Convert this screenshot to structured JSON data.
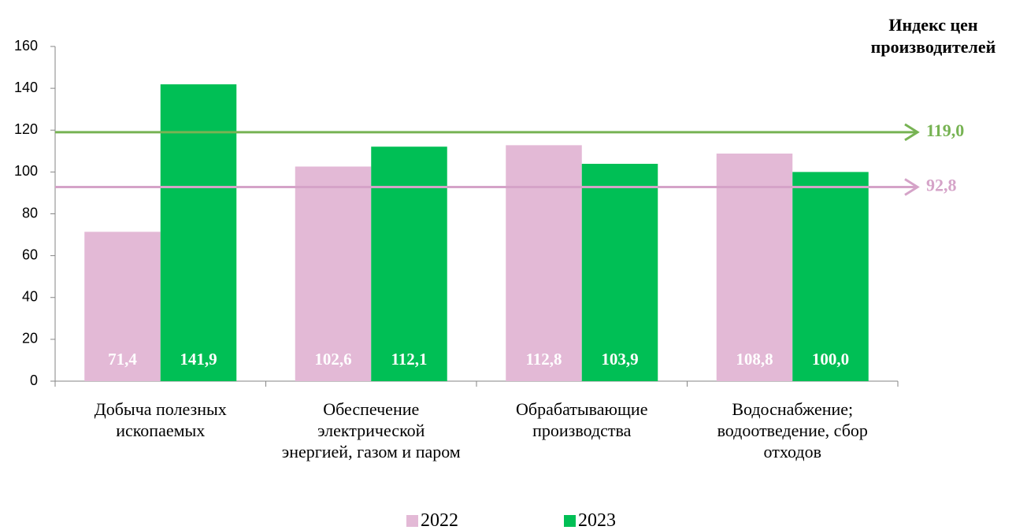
{
  "chart_data": {
    "type": "bar",
    "title": "Индекс цен производителей",
    "categories": [
      "Добыча полезных ископаемых",
      "Обеспечение электрической энергией, газом и паром",
      "Обрабатывающие производства",
      "Водоснабжение; водоотведение, сбор отходов"
    ],
    "series": [
      {
        "name": "2022",
        "color": "#e3b9d6",
        "values": [
          71.4,
          102.6,
          112.8,
          108.8
        ],
        "value_labels": [
          "71,4",
          "102,6",
          "112,8",
          "108,8"
        ]
      },
      {
        "name": "2023",
        "color": "#00bf55",
        "values": [
          141.9,
          112.1,
          103.9,
          100.0
        ],
        "value_labels": [
          "141,9",
          "112,1",
          "103,9",
          "100,0"
        ]
      }
    ],
    "reference_lines": [
      {
        "value": 119.0,
        "label": "119,0",
        "color": "#77b353"
      },
      {
        "value": 92.8,
        "label": "92,8",
        "color": "#d5a3c8"
      }
    ],
    "ylim": [
      0,
      160
    ],
    "yticks": [
      0,
      20,
      40,
      60,
      80,
      100,
      120,
      140,
      160
    ],
    "grid": false,
    "legend": "bottom"
  }
}
